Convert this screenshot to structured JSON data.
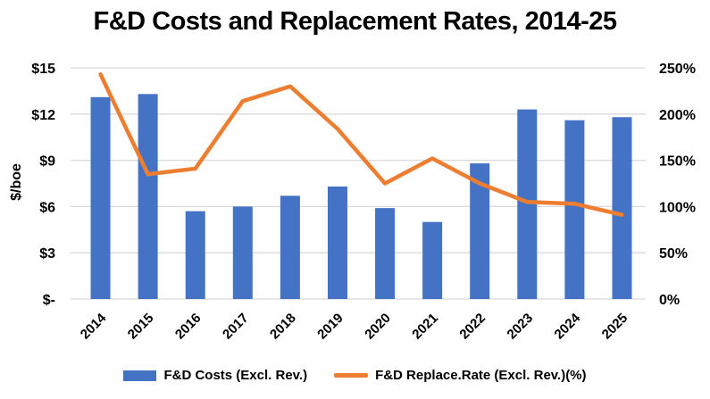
{
  "chart_data": {
    "type": "combo-bar-line",
    "title": "F&D Costs and Replacement Rates, 2014-25",
    "categories": [
      "2014",
      "2015",
      "2016",
      "2017",
      "2018",
      "2019",
      "2020",
      "2021",
      "2022",
      "2023",
      "2024",
      "2025"
    ],
    "series": [
      {
        "name": "F&D Costs (Excl. Rev.)",
        "type": "bar",
        "axis": "left",
        "unit": "$/boe",
        "color": "#4472C4",
        "values": [
          13.1,
          13.3,
          5.7,
          6.0,
          6.7,
          7.3,
          5.9,
          5.0,
          8.8,
          12.3,
          11.6,
          11.8
        ]
      },
      {
        "name": "F&D Replace.Rate  (Excl. Rev.)(%)",
        "type": "line",
        "axis": "right",
        "unit": "%",
        "color": "#ED7D31",
        "values": [
          243,
          135,
          141,
          214,
          230,
          184,
          125,
          152,
          125,
          105,
          103,
          91
        ]
      }
    ],
    "left_axis": {
      "title": "$/boe",
      "min": 0,
      "max": 15,
      "step": 3,
      "tick_labels": [
        "$-",
        "$3",
        "$6",
        "$9",
        "$12",
        "$15"
      ]
    },
    "right_axis": {
      "min": 0,
      "max": 250,
      "step": 50,
      "tick_labels": [
        "0%",
        "50%",
        "100%",
        "150%",
        "200%",
        "250%"
      ]
    },
    "grid": true,
    "legend_position": "bottom",
    "colors": {
      "bar": "#4472C4",
      "line": "#ED7D31",
      "gridline": "#D9D9D9",
      "text": "#000000",
      "background": "#FFFFFF"
    }
  }
}
